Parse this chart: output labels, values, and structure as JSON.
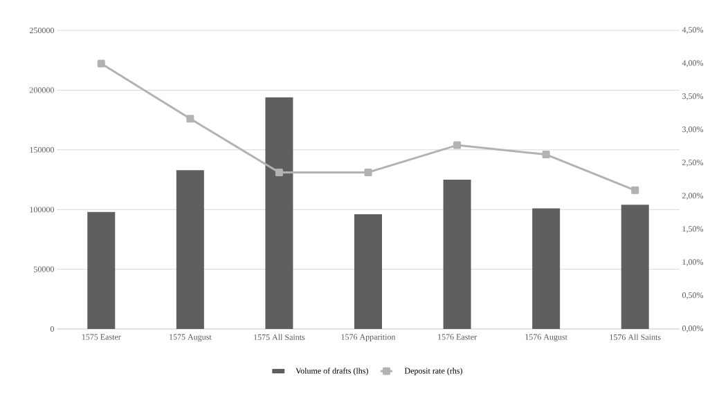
{
  "chart_data": {
    "type": "bar",
    "categories": [
      "1575 Easter",
      "1575 August",
      "1575 All Saints",
      "1576 Apparition",
      "1576 Easter",
      "1576 August",
      "1576 All Saints"
    ],
    "series": [
      {
        "name": "Volume of drafts (lhs)",
        "color": "#5f5f5f",
        "values": [
          98000,
          133000,
          194000,
          96000,
          125000,
          101000,
          104000
        ]
      },
      {
        "name": "Deposit rate (rhs)",
        "type": "line",
        "axis": "y2",
        "color": "#b2b2b2",
        "marker": "square",
        "values": [
          4.0,
          3.17,
          2.36,
          2.36,
          2.77,
          2.63,
          2.09
        ]
      }
    ],
    "ylim": [
      0,
      250000
    ],
    "yticks": [
      0,
      50000,
      100000,
      150000,
      200000,
      250000
    ],
    "y2lim": [
      0,
      4.5
    ],
    "y2ticks": [
      {
        "value": 0,
        "label": "0,00%"
      },
      {
        "value": 0.5,
        "label": "0,50%"
      },
      {
        "value": 1,
        "label": "1,00%"
      },
      {
        "value": 1.5,
        "label": "1,50%"
      },
      {
        "value": 2,
        "label": "2,00%"
      },
      {
        "value": 2.5,
        "label": "2,50%"
      },
      {
        "value": 3,
        "label": "3,00%"
      },
      {
        "value": 3.5,
        "label": "3,50%"
      },
      {
        "value": 4,
        "label": "4,00%"
      },
      {
        "value": 4.5,
        "label": "4,50%"
      }
    ],
    "grid": "y",
    "legend": "bottom"
  }
}
